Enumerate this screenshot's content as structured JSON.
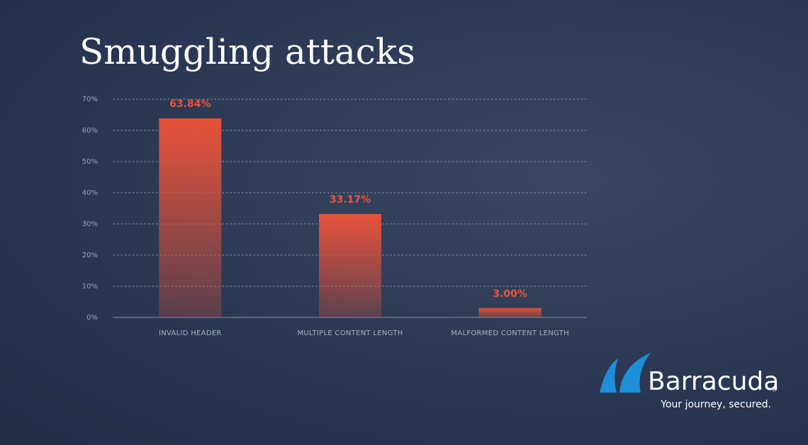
{
  "chart_data": {
    "type": "bar",
    "title": "Smuggling attacks",
    "categories": [
      "INVALID HEADER",
      "MULTIPLE CONTENT LENGTH",
      "MALFORMED CONTENT LENGTH"
    ],
    "values": [
      63.84,
      33.17,
      3.0
    ],
    "value_labels": [
      "63.84%",
      "33.17%",
      "3.00%"
    ],
    "color": "#e8523a",
    "ylim": [
      0,
      70
    ],
    "yticks": [
      {
        "value": 0,
        "label": "0%"
      },
      {
        "value": 10,
        "label": "10%"
      },
      {
        "value": 20,
        "label": "20%"
      },
      {
        "value": 30,
        "label": "30%"
      },
      {
        "value": 40,
        "label": "40%"
      },
      {
        "value": 50,
        "label": "50%"
      },
      {
        "value": 60,
        "label": "60%"
      },
      {
        "value": 70,
        "label": "70%"
      }
    ],
    "grid": true
  },
  "logo": {
    "name": "Barracuda",
    "mark": "®",
    "tagline": "Your journey, secured."
  }
}
